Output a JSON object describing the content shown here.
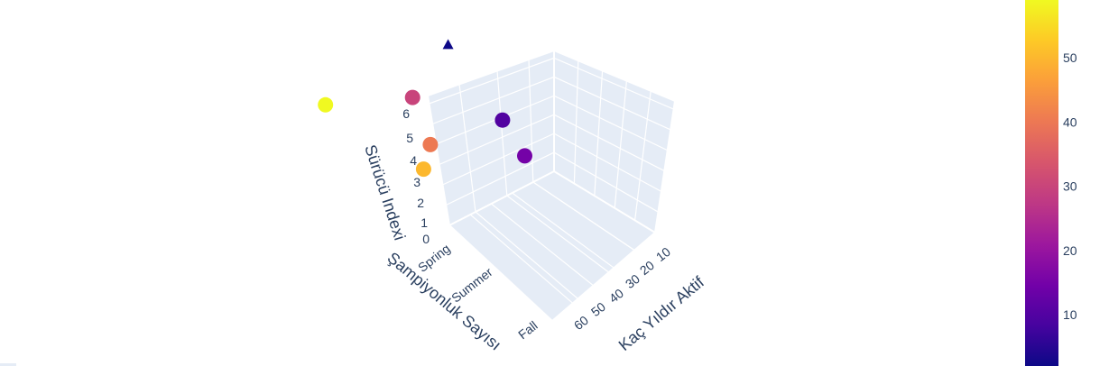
{
  "chart_data": {
    "type": "scatter3d",
    "x_axis": {
      "title": "Kaç Yıldır Aktif",
      "ticks": [
        "10",
        "20",
        "30",
        "40",
        "50",
        "60"
      ]
    },
    "y_axis": {
      "title": "Şampiyonluk Sayısı",
      "ticks": [
        "Spring",
        "Summer",
        "Fall"
      ]
    },
    "z_axis": {
      "title": "Sürücü Indexi",
      "ticks": [
        "0",
        "1",
        "2",
        "3",
        "4",
        "5",
        "6"
      ]
    },
    "colorbar": {
      "ticks": [
        "10",
        "20",
        "30",
        "40",
        "50"
      ],
      "range": [
        2,
        59
      ],
      "colorscale": "plasma"
    },
    "points": [
      {
        "x": 59,
        "y": "Spring",
        "z": 6.4,
        "color": 59
      },
      {
        "x": 30,
        "y": "Spring",
        "z": 4.6,
        "color": 30
      },
      {
        "x": 40,
        "y": "Summer",
        "z": 4.8,
        "color": 40
      },
      {
        "x": 50,
        "y": "Summer",
        "z": 4.3,
        "color": 50
      },
      {
        "x": 10,
        "y": "Summer",
        "z": 3.8,
        "color": 10
      },
      {
        "x": 15,
        "y": "Fall",
        "z": 4.2,
        "color": 15
      },
      {
        "x": 2,
        "y": "Spring",
        "z": 5.2,
        "color": 2
      }
    ]
  }
}
